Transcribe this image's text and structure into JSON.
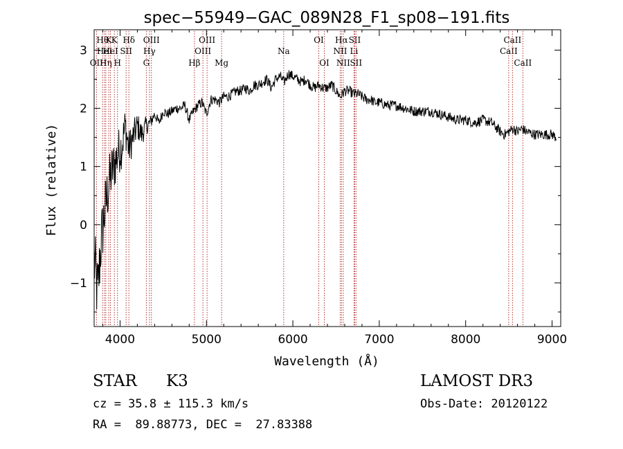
{
  "chart_data": {
    "type": "line",
    "title": "spec−55949−GAC_089N28_F1_sp08−191.fits",
    "xlabel": "Wavelength (Å)",
    "ylabel": "Flux (relative)",
    "xlim": [
      3700,
      9100
    ],
    "ylim": [
      -1.75,
      3.35
    ],
    "xticks": [
      {
        "value": 4000,
        "label": "4000"
      },
      {
        "value": 5000,
        "label": "5000"
      },
      {
        "value": 6000,
        "label": "6000"
      },
      {
        "value": 7000,
        "label": "7000"
      },
      {
        "value": 8000,
        "label": "8000"
      },
      {
        "value": 9000,
        "label": "9000"
      }
    ],
    "yticks": [
      {
        "value": -1,
        "label": "−1"
      },
      {
        "value": 0,
        "label": "0"
      },
      {
        "value": 1,
        "label": "1"
      },
      {
        "value": 2,
        "label": "2"
      },
      {
        "value": 3,
        "label": "3"
      }
    ],
    "series": [
      {
        "name": "flux",
        "x": [
          3700,
          3740,
          3780,
          3820,
          3860,
          3900,
          3940,
          3980,
          4020,
          4060,
          4100,
          4150,
          4200,
          4250,
          4300,
          4350,
          4400,
          4450,
          4500,
          4550,
          4600,
          4650,
          4700,
          4750,
          4800,
          4850,
          4900,
          4950,
          5000,
          5050,
          5100,
          5150,
          5200,
          5250,
          5300,
          5350,
          5400,
          5450,
          5500,
          5550,
          5600,
          5650,
          5700,
          5750,
          5800,
          5850,
          5900,
          5950,
          6000,
          6050,
          6100,
          6150,
          6200,
          6250,
          6300,
          6350,
          6400,
          6450,
          6500,
          6550,
          6600,
          6650,
          6700,
          6750,
          6800,
          6850,
          6900,
          6950,
          7000,
          7100,
          7200,
          7300,
          7400,
          7500,
          7600,
          7700,
          7800,
          7900,
          8000,
          8100,
          8200,
          8300,
          8400,
          8450,
          8500,
          8550,
          8600,
          8650,
          8700,
          8800,
          8900,
          9000,
          9050
        ],
        "y": [
          -0.6,
          -1.2,
          -0.3,
          0.2,
          0.6,
          0.9,
          1.05,
          1.25,
          1.35,
          1.7,
          1.3,
          1.5,
          1.7,
          1.55,
          1.7,
          1.75,
          1.9,
          1.75,
          1.95,
          1.9,
          1.95,
          2.0,
          2.0,
          2.05,
          1.8,
          1.95,
          2.05,
          2.1,
          1.9,
          2.15,
          2.15,
          2.1,
          2.2,
          2.2,
          2.25,
          2.3,
          2.3,
          2.35,
          2.3,
          2.4,
          2.4,
          2.45,
          2.5,
          2.35,
          2.5,
          2.55,
          2.45,
          2.6,
          2.55,
          2.5,
          2.45,
          2.5,
          2.4,
          2.35,
          2.4,
          2.35,
          2.35,
          2.4,
          2.3,
          2.2,
          2.3,
          2.3,
          2.25,
          2.25,
          2.2,
          2.15,
          2.15,
          2.1,
          2.1,
          2.05,
          2.05,
          2.0,
          1.95,
          1.95,
          1.95,
          1.9,
          1.85,
          1.8,
          1.8,
          1.75,
          1.8,
          1.75,
          1.6,
          1.55,
          1.6,
          1.65,
          1.6,
          1.65,
          1.6,
          1.55,
          1.55,
          1.55,
          1.5
        ],
        "noise": 0.09,
        "noise_blue": 0.55
      }
    ],
    "lines": [
      {
        "wavelength": 3727,
        "label": "OII",
        "row": 3
      },
      {
        "wavelength": 3798,
        "label": "Hθ",
        "row": 1
      },
      {
        "wavelength": 3820,
        "label": "HeI",
        "row": 2
      },
      {
        "wavelength": 3835,
        "label": "Hη",
        "row": 3
      },
      {
        "wavelength": 3869,
        "label": "K",
        "row": 1
      },
      {
        "wavelength": 3889,
        "label": "HeI",
        "row": 2
      },
      {
        "wavelength": 3934,
        "label": "K",
        "row": 1
      },
      {
        "wavelength": 3970,
        "label": "H",
        "row": 3
      },
      {
        "wavelength": 4070,
        "label": "SII",
        "row": 2
      },
      {
        "wavelength": 4102,
        "label": "Hδ",
        "row": 1
      },
      {
        "wavelength": 4304,
        "label": "G",
        "row": 3
      },
      {
        "wavelength": 4340,
        "label": "Hγ",
        "row": 2
      },
      {
        "wavelength": 4363,
        "label": "OIII",
        "row": 1
      },
      {
        "wavelength": 4861,
        "label": "Hβ",
        "row": 3
      },
      {
        "wavelength": 4959,
        "label": "OIII",
        "row": 2
      },
      {
        "wavelength": 5007,
        "label": "OIII",
        "row": 1
      },
      {
        "wavelength": 5175,
        "label": "Mg",
        "row": 3
      },
      {
        "wavelength": 5894,
        "label": "Na",
        "row": 2
      },
      {
        "wavelength": 6300,
        "label": "OI",
        "row": 1
      },
      {
        "wavelength": 6364,
        "label": "OI",
        "row": 3
      },
      {
        "wavelength": 6548,
        "label": "NII",
        "row": 2
      },
      {
        "wavelength": 6563,
        "label": "Hα",
        "row": 1
      },
      {
        "wavelength": 6583,
        "label": "NII",
        "row": 3
      },
      {
        "wavelength": 6708,
        "label": "Li",
        "row": 2
      },
      {
        "wavelength": 6716,
        "label": "SII",
        "row": 1
      },
      {
        "wavelength": 6731,
        "label": "SII",
        "row": 3
      },
      {
        "wavelength": 8498,
        "label": "CaII",
        "row": 2
      },
      {
        "wavelength": 8542,
        "label": "CaII",
        "row": 1
      },
      {
        "wavelength": 8662,
        "label": "CaII",
        "row": 3
      }
    ],
    "line_color": "#b03030",
    "grid": false
  },
  "info": {
    "class": "STAR",
    "subclass": "K3",
    "survey": "LAMOST DR3",
    "cz": "cz = 35.8 ± 115.3 km/s",
    "obs_date": "Obs-Date: 20120122",
    "radec": "RA =  89.88773, DEC =  27.83388"
  }
}
